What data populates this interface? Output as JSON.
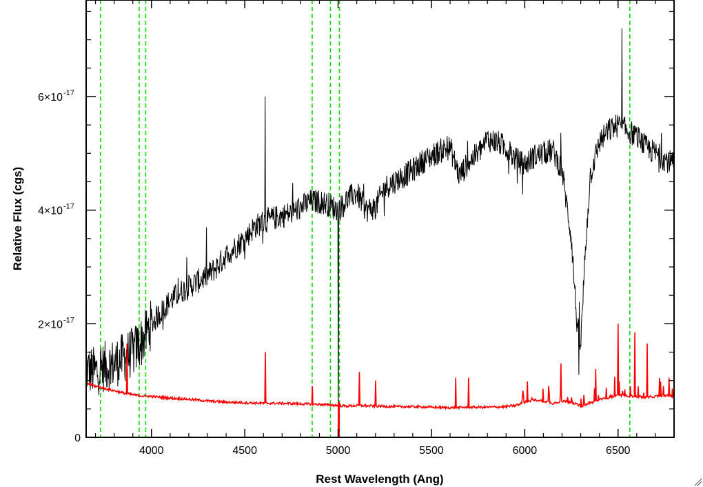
{
  "chart_data": {
    "type": "line",
    "title": "",
    "xlabel": "Rest Wavelength (Ang)",
    "ylabel": "Relative Flux (cgs)",
    "xlim": [
      3650,
      6800
    ],
    "ylim": [
      0,
      7.7e-17
    ],
    "x_tick_labels": [
      "4000",
      "4500",
      "5000",
      "5500",
      "6000",
      "6500"
    ],
    "x_ticks": [
      4000,
      4500,
      5000,
      5500,
      6000,
      6500
    ],
    "y_ticks": [
      {
        "value": 0,
        "label_mantissa": "0",
        "label_exp": ""
      },
      {
        "value": 2e-17,
        "label_mantissa": "2×10",
        "label_exp": "-17"
      },
      {
        "value": 4e-17,
        "label_mantissa": "4×10",
        "label_exp": "-17"
      },
      {
        "value": 6e-17,
        "label_mantissa": "6×10",
        "label_exp": "-17"
      }
    ],
    "grid": false,
    "legend": "none",
    "vertical_lines": [
      3727,
      3934,
      3969,
      4861,
      4959,
      5007,
      6563
    ],
    "series": [
      {
        "color": "#000000",
        "x": [
          3650,
          3700,
          3750,
          3800,
          3850,
          3900,
          3950,
          4000,
          4050,
          4100,
          4150,
          4200,
          4250,
          4300,
          4350,
          4400,
          4450,
          4500,
          4550,
          4600,
          4650,
          4700,
          4750,
          4800,
          4850,
          4900,
          4950,
          5000,
          5050,
          5100,
          5150,
          5200,
          5250,
          5300,
          5350,
          5400,
          5450,
          5500,
          5550,
          5600,
          5650,
          5700,
          5750,
          5800,
          5850,
          5900,
          5950,
          6000,
          6050,
          6100,
          6150,
          6200,
          6250,
          6280,
          6300,
          6320,
          6350,
          6400,
          6450,
          6500,
          6550,
          6600,
          6650,
          6700,
          6750,
          6800
        ],
        "y": [
          1.2e-17,
          1.15e-17,
          1.25e-17,
          1.3e-17,
          1.4e-17,
          1.5e-17,
          1.7e-17,
          2e-17,
          2.2e-17,
          2.4e-17,
          2.55e-17,
          2.65e-17,
          2.75e-17,
          2.85e-17,
          3e-17,
          3.2e-17,
          3.35e-17,
          3.5e-17,
          3.7e-17,
          3.8e-17,
          3.85e-17,
          3.9e-17,
          3.95e-17,
          4.05e-17,
          4.15e-17,
          4.15e-17,
          4.1e-17,
          4e-17,
          4.2e-17,
          4.3e-17,
          4e-17,
          4.05e-17,
          4.4e-17,
          4.5e-17,
          4.6e-17,
          4.7e-17,
          4.85e-17,
          4.95e-17,
          5.05e-17,
          5.1e-17,
          4.6e-17,
          4.85e-17,
          5e-17,
          5.25e-17,
          5.2e-17,
          5.1e-17,
          4.9e-17,
          4.8e-17,
          4.95e-17,
          5e-17,
          5.05e-17,
          4.7e-17,
          3.5e-17,
          2e-17,
          1.6e-17,
          3e-17,
          4.6e-17,
          5.2e-17,
          5.4e-17,
          5.5e-17,
          5.4e-17,
          5.3e-17,
          5.1e-17,
          5e-17,
          4.9e-17,
          4.8e-17
        ]
      },
      {
        "color": "#ff0000",
        "x": [
          3650,
          3700,
          3750,
          3800,
          3850,
          3900,
          3950,
          4000,
          4100,
          4200,
          4300,
          4400,
          4500,
          4600,
          4700,
          4800,
          4900,
          5000,
          5050,
          5100,
          5200,
          5300,
          5400,
          5500,
          5600,
          5700,
          5800,
          5900,
          5950,
          6000,
          6050,
          6100,
          6150,
          6200,
          6250,
          6300,
          6350,
          6400,
          6450,
          6500,
          6550,
          6600,
          6650,
          6700,
          6750,
          6800
        ],
        "y": [
          9.6e-18,
          9e-18,
          8.6e-18,
          8.2e-18,
          7.8e-18,
          7.5e-18,
          7.3e-18,
          7.2e-18,
          6.9e-18,
          6.7e-18,
          6.4e-18,
          6.2e-18,
          6.1e-18,
          6e-18,
          6e-18,
          5.9e-18,
          5.8e-18,
          5.6e-18,
          5.5e-18,
          5.6e-18,
          5.5e-18,
          5.4e-18,
          5.4e-18,
          5.3e-18,
          5.2e-18,
          5.3e-18,
          5.3e-18,
          5.4e-18,
          5.6e-18,
          6.2e-18,
          6.6e-18,
          6.4e-18,
          6e-18,
          6.4e-18,
          6.2e-18,
          5.5e-18,
          6e-18,
          6.6e-18,
          7e-18,
          7.4e-18,
          7.3e-18,
          7.2e-18,
          7e-18,
          7.2e-18,
          7.4e-18,
          7.2e-18
        ]
      }
    ],
    "emission_spikes": [
      {
        "x": 3868,
        "y": 1.65e-17
      },
      {
        "x": 4610,
        "y": 1.5e-17
      },
      {
        "x": 4861,
        "y": 9e-18
      },
      {
        "x": 5115,
        "y": 1.15e-17
      },
      {
        "x": 5200,
        "y": 1e-17
      },
      {
        "x": 5630,
        "y": 1.05e-17
      },
      {
        "x": 5700,
        "y": 1.05e-17
      },
      {
        "x": 6195,
        "y": 1.3e-17
      },
      {
        "x": 6380,
        "y": 1.2e-17
      },
      {
        "x": 6500,
        "y": 2e-17
      },
      {
        "x": 6590,
        "y": 1.85e-17
      },
      {
        "x": 6655,
        "y": 1.65e-17
      }
    ]
  }
}
